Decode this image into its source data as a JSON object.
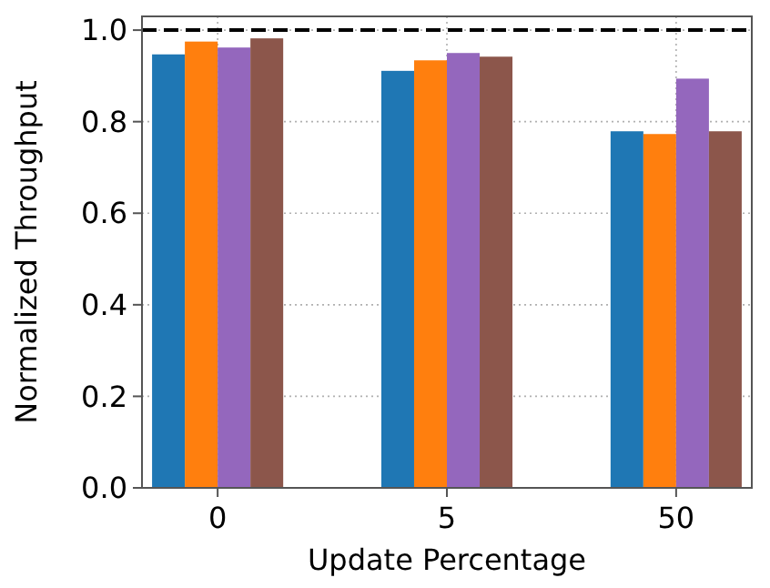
{
  "chart_data": {
    "type": "bar",
    "xlabel": "Update Percentage",
    "ylabel": "Normalized Throughput",
    "categories": [
      "0",
      "5",
      "50"
    ],
    "series": [
      {
        "color": "#1f77b4",
        "values": [
          0.947,
          0.911,
          0.779
        ]
      },
      {
        "color": "#ff7f0e",
        "values": [
          0.975,
          0.934,
          0.773
        ]
      },
      {
        "color": "#9467bd",
        "values": [
          0.962,
          0.95,
          0.894
        ]
      },
      {
        "color": "#8c564b",
        "values": [
          0.982,
          0.942,
          0.779
        ]
      }
    ],
    "ylim": [
      0,
      1.03
    ],
    "yticks": [
      {
        "value": 0,
        "label": "0.0"
      },
      {
        "value": 0.2,
        "label": "0.2"
      },
      {
        "value": 0.4,
        "label": "0.4"
      },
      {
        "value": 0.6,
        "label": "0.6"
      },
      {
        "value": 0.8,
        "label": "0.8"
      },
      {
        "value": 1,
        "label": "1.0"
      }
    ],
    "grid": true,
    "ref_lines": [
      {
        "axis": "y",
        "value": 1,
        "color": "#000000",
        "line_style": "dashed"
      }
    ]
  }
}
